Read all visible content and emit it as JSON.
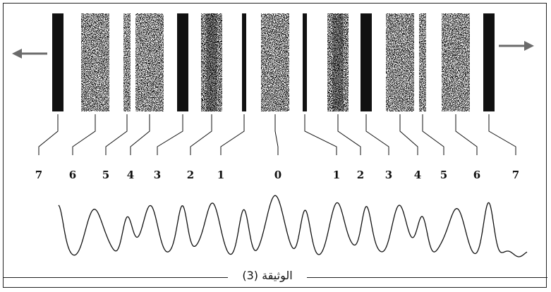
{
  "figure": {
    "caption": "الوثيقة (3)",
    "colors": {
      "ink": "#111111",
      "paper": "#ffffff"
    },
    "arrows": [
      "arrow-left-icon",
      "arrow-right-icon"
    ]
  },
  "fringes": [
    {
      "order": "7",
      "label": "7",
      "type": "dark"
    },
    {
      "order": "6",
      "label": "6",
      "type": "speckled"
    },
    {
      "order": "5",
      "label": "5",
      "type": "speckled-thin"
    },
    {
      "order": "4",
      "label": "4",
      "type": "speckled"
    },
    {
      "order": "3",
      "label": "3",
      "type": "dark"
    },
    {
      "order": "2",
      "label": "2",
      "type": "speckled-dense"
    },
    {
      "order": "1",
      "label": "1",
      "type": "line"
    },
    {
      "order": "0",
      "label": "0",
      "type": "speckled"
    },
    {
      "order": "1",
      "label": "1",
      "type": "line"
    },
    {
      "order": "2",
      "label": "2",
      "type": "speckled-dense"
    },
    {
      "order": "3",
      "label": "3",
      "type": "dark"
    },
    {
      "order": "4",
      "label": "4",
      "type": "speckled"
    },
    {
      "order": "5",
      "label": "5",
      "type": "speckled-thin"
    },
    {
      "order": "6",
      "label": "6",
      "type": "speckled"
    },
    {
      "order": "7",
      "label": "7",
      "type": "dark"
    }
  ]
}
